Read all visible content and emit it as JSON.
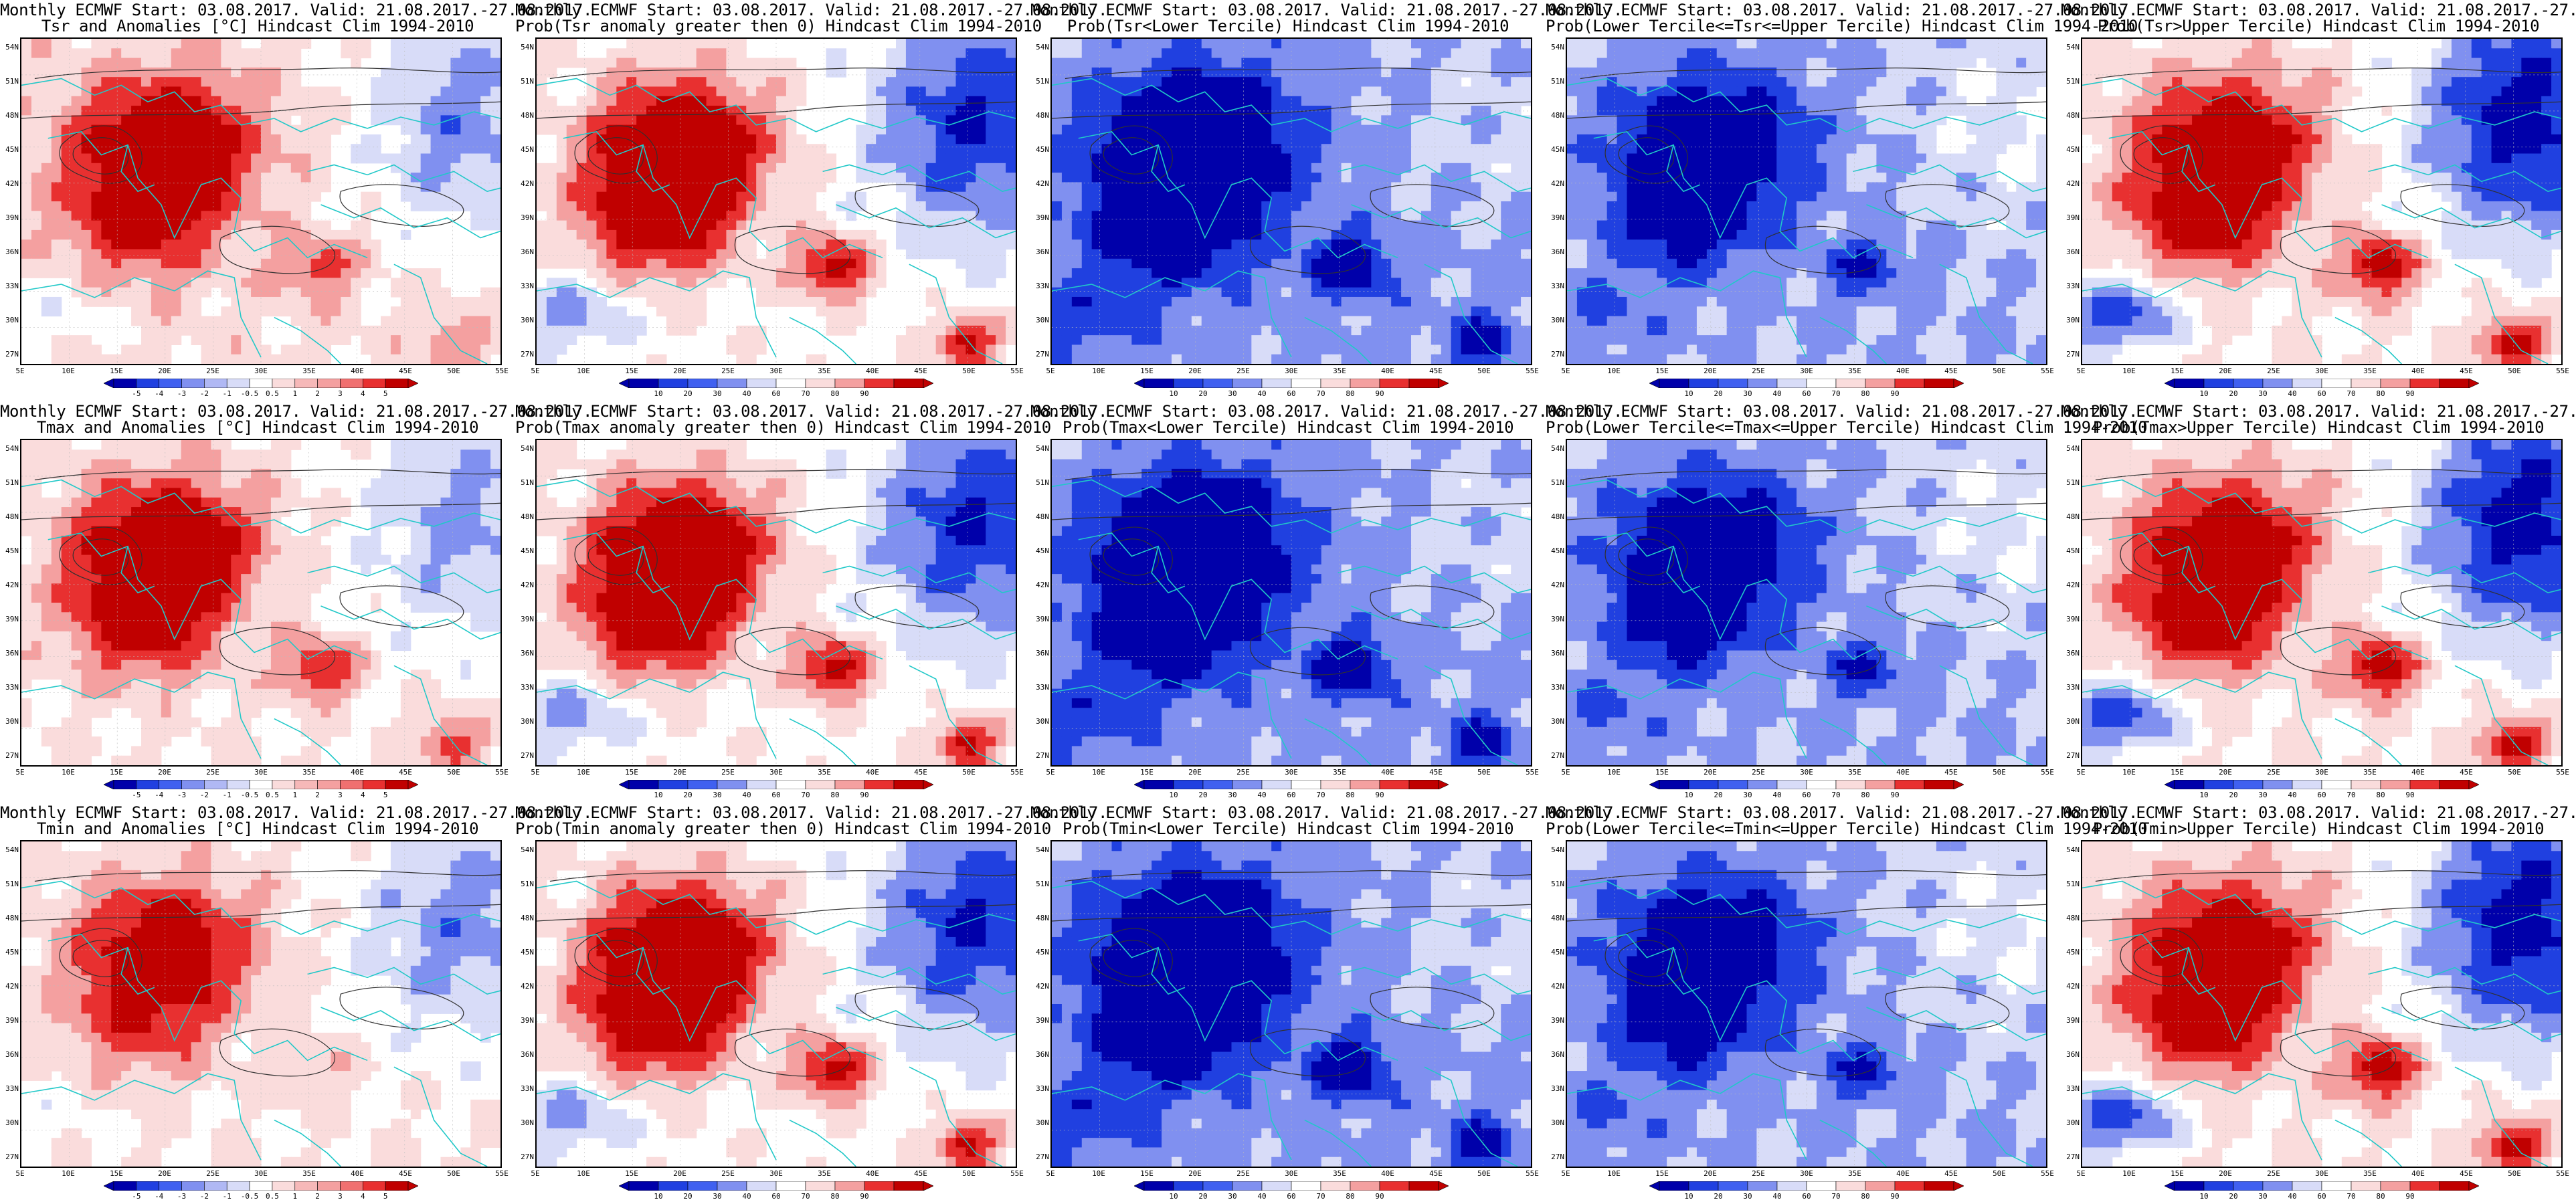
{
  "header_line": "Monthly ECMWF Start: 03.08.2017. Valid: 21.08.2017.-27.08.2017.",
  "lat_labels": [
    "54N",
    "51N",
    "48N",
    "45N",
    "42N",
    "39N",
    "36N",
    "33N",
    "30N",
    "27N"
  ],
  "lon_labels": [
    "5E",
    "10E",
    "15E",
    "20E",
    "25E",
    "30E",
    "35E",
    "40E",
    "45E",
    "50E",
    "55E"
  ],
  "anomaly_ticks": [
    "-5",
    "-4",
    "-3",
    "-2",
    "-1",
    "-0.5",
    "0.5",
    "1",
    "2",
    "3",
    "4",
    "5"
  ],
  "prob_ticks": [
    "10",
    "20",
    "30",
    "40",
    "60",
    "70",
    "80",
    "90"
  ],
  "colors": {
    "strong_red": "#c00000",
    "red": "#e83030",
    "light_red": "#f4a0a0",
    "pale_red": "#fadcdc",
    "strong_blue": "#0000aa",
    "blue": "#2040e0",
    "light_blue": "#8090f0",
    "pale_blue": "#d8dcf8",
    "coast": "#20c8c8",
    "contour": "#303030"
  },
  "panels": [
    {
      "title": "Tsr and Anomalies [°C] Hindcast Clim 1994-2010",
      "kind": "anomaly",
      "field": "anom_tsr"
    },
    {
      "title": "Prob(Tsr anomaly greater then 0) Hindcast Clim 1994-2010",
      "kind": "prob",
      "field": "warm"
    },
    {
      "title": "Prob(Tsr<Lower Tercile) Hindcast Clim 1994-2010",
      "kind": "prob",
      "field": "cold"
    },
    {
      "title": "Prob(Lower Tercile<=Tsr<=Upper Tercile) Hindcast Clim 1994-2010",
      "kind": "prob",
      "field": "mid"
    },
    {
      "title": "Prob(Tsr>Upper Tercile) Hindcast Clim 1994-2010",
      "kind": "prob",
      "field": "upper"
    },
    {
      "title": "Tmax and Anomalies [°C] Hindcast Clim 1994-2010",
      "kind": "anomaly",
      "field": "anom_tmax"
    },
    {
      "title": "Prob(Tmax anomaly greater then 0) Hindcast Clim 1994-2010",
      "kind": "prob",
      "field": "warm"
    },
    {
      "title": "Prob(Tmax<Lower Tercile) Hindcast Clim 1994-2010",
      "kind": "prob",
      "field": "cold"
    },
    {
      "title": "Prob(Lower Tercile<=Tmax<=Upper Tercile) Hindcast Clim 1994-2010",
      "kind": "prob",
      "field": "mid"
    },
    {
      "title": "Prob(Tmax>Upper Tercile) Hindcast Clim 1994-2010",
      "kind": "prob",
      "field": "upper"
    },
    {
      "title": "Tmin and Anomalies [°C] Hindcast Clim 1994-2010",
      "kind": "anomaly",
      "field": "anom_tmin"
    },
    {
      "title": "Prob(Tmin anomaly greater then 0) Hindcast Clim 1994-2010",
      "kind": "prob",
      "field": "warm"
    },
    {
      "title": "Prob(Tmin<Lower Tercile) Hindcast Clim 1994-2010",
      "kind": "prob",
      "field": "cold"
    },
    {
      "title": "Prob(Lower Tercile<=Tmin<=Upper Tercile) Hindcast Clim 1994-2010",
      "kind": "prob",
      "field": "mid"
    },
    {
      "title": "Prob(Tmin>Upper Tercile) Hindcast Clim 1994-2010",
      "kind": "prob",
      "field": "upper"
    }
  ]
}
